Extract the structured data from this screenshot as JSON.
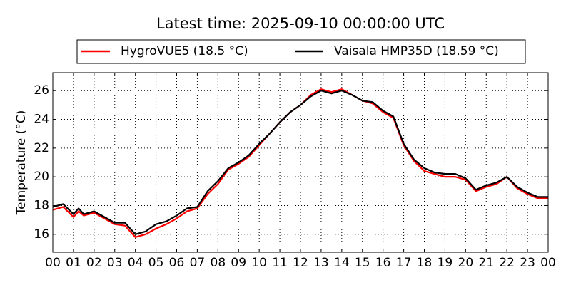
{
  "chart_data": {
    "type": "line",
    "title": "Latest time: 2025-09-10 00:00:00 UTC",
    "ylabel": "Temperature (°C)",
    "x": [
      0,
      0.5,
      1,
      1.25,
      1.5,
      2,
      2.5,
      3,
      3.5,
      4,
      4.5,
      5,
      5.5,
      6,
      6.5,
      7,
      7.5,
      8,
      8.5,
      9,
      9.5,
      10,
      10.5,
      11,
      11.5,
      12,
      12.5,
      13,
      13.5,
      14,
      14.5,
      15,
      15.5,
      16,
      16.5,
      17,
      17.5,
      18,
      18.5,
      19,
      19.5,
      20,
      20.5,
      21,
      21.5,
      22,
      22.5,
      23,
      23.5,
      24
    ],
    "series": [
      {
        "name": "HygroVUE5 (18.5 °C)",
        "color": "#ff0000",
        "values": [
          17.7,
          17.9,
          17.2,
          17.6,
          17.3,
          17.5,
          17.1,
          16.7,
          16.6,
          15.8,
          16.0,
          16.4,
          16.7,
          17.1,
          17.6,
          17.8,
          18.8,
          19.5,
          20.5,
          20.9,
          21.4,
          22.2,
          23.0,
          23.8,
          24.5,
          25.0,
          25.7,
          26.1,
          25.9,
          26.1,
          25.7,
          25.3,
          25.1,
          24.5,
          24.1,
          22.2,
          21.1,
          20.4,
          20.2,
          20.0,
          20.0,
          19.8,
          19.0,
          19.3,
          19.5,
          20.0,
          19.2,
          18.8,
          18.5,
          18.5
        ]
      },
      {
        "name": "Vaisala HMP35D (18.59 °C)",
        "color": "#000000",
        "values": [
          17.9,
          18.1,
          17.4,
          17.8,
          17.4,
          17.6,
          17.2,
          16.8,
          16.8,
          16.0,
          16.2,
          16.7,
          16.9,
          17.3,
          17.8,
          17.9,
          19.0,
          19.7,
          20.6,
          21.0,
          21.5,
          22.3,
          23.0,
          23.8,
          24.5,
          25.0,
          25.6,
          26.0,
          25.8,
          26.0,
          25.7,
          25.3,
          25.2,
          24.6,
          24.2,
          22.3,
          21.2,
          20.6,
          20.3,
          20.2,
          20.2,
          19.9,
          19.1,
          19.4,
          19.6,
          20.0,
          19.3,
          18.9,
          18.6,
          18.6
        ]
      }
    ],
    "xlim": [
      0,
      24
    ],
    "xticks": [
      {
        "value": 0,
        "label": "00"
      },
      {
        "value": 1,
        "label": "01"
      },
      {
        "value": 2,
        "label": "02"
      },
      {
        "value": 3,
        "label": "03"
      },
      {
        "value": 4,
        "label": "04"
      },
      {
        "value": 5,
        "label": "05"
      },
      {
        "value": 6,
        "label": "06"
      },
      {
        "value": 7,
        "label": "07"
      },
      {
        "value": 8,
        "label": "08"
      },
      {
        "value": 9,
        "label": "09"
      },
      {
        "value": 10,
        "label": "10"
      },
      {
        "value": 11,
        "label": "11"
      },
      {
        "value": 12,
        "label": "12"
      },
      {
        "value": 13,
        "label": "13"
      },
      {
        "value": 14,
        "label": "14"
      },
      {
        "value": 15,
        "label": "15"
      },
      {
        "value": 16,
        "label": "16"
      },
      {
        "value": 17,
        "label": "17"
      },
      {
        "value": 18,
        "label": "18"
      },
      {
        "value": 19,
        "label": "19"
      },
      {
        "value": 20,
        "label": "20"
      },
      {
        "value": 21,
        "label": "21"
      },
      {
        "value": 22,
        "label": "22"
      },
      {
        "value": 23,
        "label": "23"
      },
      {
        "value": 24,
        "label": "00"
      }
    ],
    "ylim": [
      14.75,
      27.25
    ],
    "yticks": [
      16,
      18,
      20,
      22,
      24,
      26
    ],
    "grid": true,
    "legend": "top"
  }
}
